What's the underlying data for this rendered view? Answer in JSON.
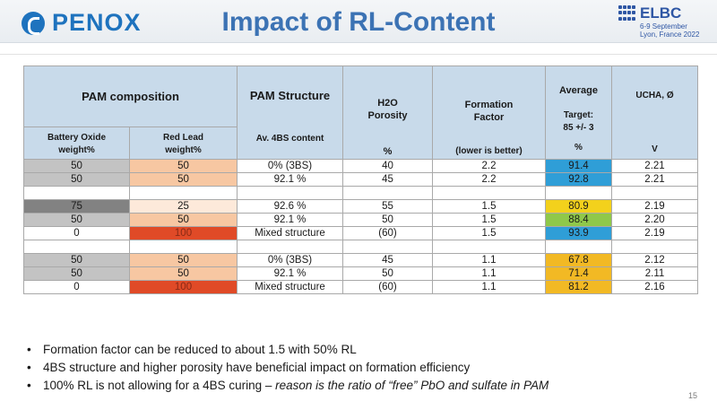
{
  "header": {
    "logo": "PENOX",
    "title": "Impact of RL-Content",
    "event_name": "ELBC",
    "event_dates": "6-9 September",
    "event_location": "Lyon, France 2022"
  },
  "table": {
    "headers": {
      "pam_composition": "PAM composition",
      "battery_oxide": "Battery Oxide",
      "red_lead": "Red Lead",
      "weight_unit": "weight%",
      "pam_structure": "PAM Structure",
      "av_4bs": "Av. 4BS content",
      "h2o": "H2O",
      "porosity": "Porosity",
      "porosity_unit": "%",
      "formation": "Formation",
      "factor": "Factor",
      "lower_better": "(lower is better)",
      "average": "Average",
      "target": "Target:",
      "target_value": "85 +/- 3",
      "average_unit": "%",
      "ucha": "UCHA, Ø",
      "ucha_unit": "V"
    },
    "group1": [
      {
        "oxide": "50",
        "red_lead": "50",
        "structure": "0% (3BS)",
        "porosity": "40",
        "formation": "2.2",
        "average": "91.4",
        "ucha": "2.21"
      },
      {
        "oxide": "50",
        "red_lead": "50",
        "structure": "92.1 %",
        "porosity": "45",
        "formation": "2.2",
        "average": "92.8",
        "ucha": "2.21"
      }
    ],
    "group2": [
      {
        "oxide": "75",
        "red_lead": "25",
        "structure": "92.6 %",
        "porosity": "55",
        "formation": "1.5",
        "average": "80.9",
        "ucha": "2.19"
      },
      {
        "oxide": "50",
        "red_lead": "50",
        "structure": "92.1 %",
        "porosity": "50",
        "formation": "1.5",
        "average": "88.4",
        "ucha": "2.20"
      },
      {
        "oxide": "0",
        "red_lead": "100",
        "structure": "Mixed structure",
        "porosity": "(60)",
        "formation": "1.5",
        "average": "93.9",
        "ucha": "2.19"
      }
    ],
    "group3": [
      {
        "oxide": "50",
        "red_lead": "50",
        "structure": "0% (3BS)",
        "porosity": "45",
        "formation": "1.1",
        "average": "67.8",
        "ucha": "2.12"
      },
      {
        "oxide": "50",
        "red_lead": "50",
        "structure": "92.1 %",
        "porosity": "50",
        "formation": "1.1",
        "average": "71.4",
        "ucha": "2.11"
      },
      {
        "oxide": "0",
        "red_lead": "100",
        "structure": "Mixed structure",
        "porosity": "(60)",
        "formation": "1.1",
        "average": "81.2",
        "ucha": "2.16"
      }
    ]
  },
  "notes": {
    "bullet1": "Formation factor can be reduced to about 1.5 with 50% RL",
    "bullet2": "4BS structure and higher porosity have beneficial impact on formation efficiency",
    "bullet3_plain": "100% RL is not allowing for a 4BS curing – ",
    "bullet3_italic": "reason is the ratio of “free” PbO and sulfate in PAM"
  },
  "page_number": "15",
  "colors": {
    "header_blue": "#c8daea",
    "title_blue": "#3c73b4",
    "cell_blue": "#2f9ed7",
    "cell_yellow": "#f3d11c",
    "cell_orange": "#f2b924",
    "cell_green": "#8fc84a",
    "cell_red": "#e04a27",
    "cell_peach": "#f7c7a2"
  }
}
